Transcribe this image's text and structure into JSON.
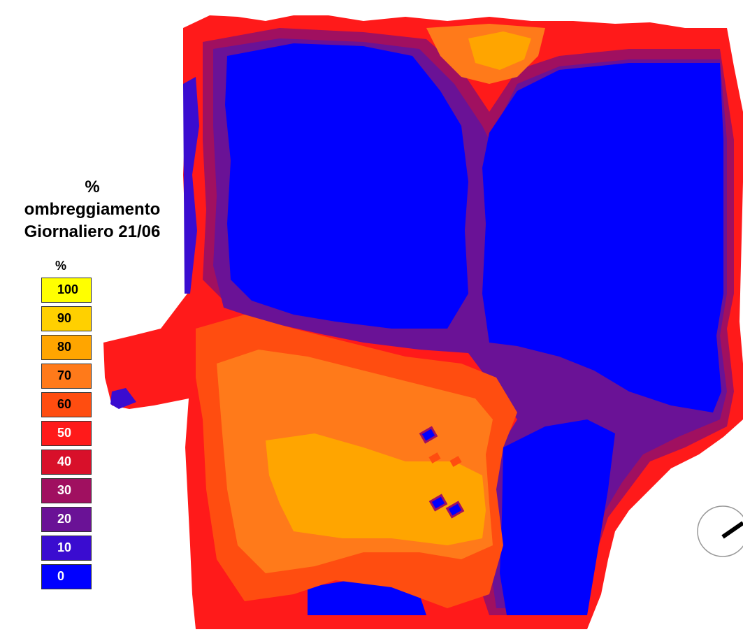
{
  "title": {
    "line1": "%",
    "line2": "ombreggiamento",
    "line3": "Giornaliero 21/06"
  },
  "legend": {
    "unit": "%",
    "items": [
      {
        "label": "100",
        "color": "#ffff00",
        "text_color": "#000000"
      },
      {
        "label": "90",
        "color": "#ffd000",
        "text_color": "#000000"
      },
      {
        "label": "80",
        "color": "#ffa500",
        "text_color": "#000000"
      },
      {
        "label": "70",
        "color": "#ff7a1a",
        "text_color": "#000000"
      },
      {
        "label": "60",
        "color": "#ff4d10",
        "text_color": "#000000"
      },
      {
        "label": "50",
        "color": "#ff1a1a",
        "text_color": "#ffffff"
      },
      {
        "label": "40",
        "color": "#d8102a",
        "text_color": "#ffffff"
      },
      {
        "label": "30",
        "color": "#a01060",
        "text_color": "#ffffff"
      },
      {
        "label": "20",
        "color": "#6a1296",
        "text_color": "#ffffff"
      },
      {
        "label": "10",
        "color": "#3a0cd0",
        "text_color": "#ffffff"
      },
      {
        "label": "0",
        "color": "#0000ff",
        "text_color": "#ffffff"
      }
    ]
  },
  "map": {
    "ground_color": "#ff1a1a",
    "icon": "north-arrow-icon"
  }
}
